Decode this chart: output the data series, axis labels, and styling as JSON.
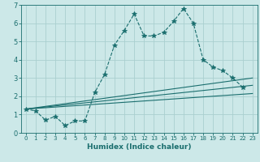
{
  "xlabel": "Humidex (Indice chaleur)",
  "ylabel": "",
  "background_color": "#cce8e8",
  "grid_color": "#aacfcf",
  "line_color": "#1a6e6e",
  "xlim": [
    -0.5,
    23.5
  ],
  "ylim": [
    0,
    7
  ],
  "xticks": [
    0,
    1,
    2,
    3,
    4,
    5,
    6,
    7,
    8,
    9,
    10,
    11,
    12,
    13,
    14,
    15,
    16,
    17,
    18,
    19,
    20,
    21,
    22,
    23
  ],
  "yticks": [
    0,
    1,
    2,
    3,
    4,
    5,
    6,
    7
  ],
  "series": [
    {
      "x": [
        0,
        1,
        2,
        3,
        4,
        5,
        6,
        7,
        8,
        9,
        10,
        11,
        12,
        13,
        14,
        15,
        16,
        17,
        18,
        19,
        20,
        21,
        22
      ],
      "y": [
        1.3,
        1.2,
        0.7,
        0.9,
        0.4,
        0.65,
        0.65,
        2.2,
        3.2,
        4.8,
        5.6,
        6.5,
        5.3,
        5.3,
        5.5,
        6.1,
        6.8,
        6.0,
        4.0,
        3.6,
        3.4,
        3.0,
        2.5
      ],
      "style": "--",
      "marker": "*",
      "markersize": 4
    },
    {
      "x": [
        0,
        23
      ],
      "y": [
        1.3,
        2.6
      ],
      "style": "-",
      "marker": null,
      "markersize": 0
    },
    {
      "x": [
        0,
        23
      ],
      "y": [
        1.3,
        2.15
      ],
      "style": "-",
      "marker": null,
      "markersize": 0
    },
    {
      "x": [
        0,
        23
      ],
      "y": [
        1.3,
        3.0
      ],
      "style": "-",
      "marker": null,
      "markersize": 0
    }
  ]
}
